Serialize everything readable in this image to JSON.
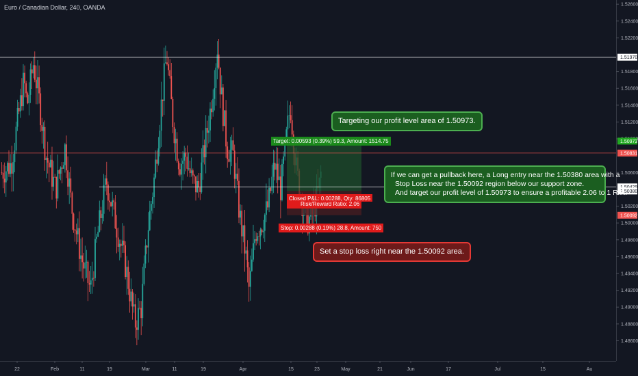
{
  "chart_title": "Euro / Canadian Dollar, 240, OANDA",
  "chart_data": {
    "type": "candlestick",
    "title": "Euro / Canadian Dollar, 240, OANDA",
    "ylim": [
      1.4836,
      1.5265
    ],
    "y_ticks": [
      "1.52600",
      "1.52400",
      "1.52200",
      "1.51800",
      "1.51600",
      "1.51400",
      "1.51200",
      "1.51000",
      "1.50600",
      "1.50200",
      "1.50000",
      "1.49800",
      "1.49600",
      "1.49400",
      "1.49200",
      "1.49000",
      "1.48800",
      "1.48600"
    ],
    "x_ticks": [
      "22",
      "Feb",
      "11",
      "19",
      "Mar",
      "11",
      "19",
      "Apr",
      "15",
      "23",
      "May",
      "21",
      "Jun",
      "17",
      "Jul",
      "15",
      "Au"
    ],
    "price_path": [
      [
        0,
        1.506
      ],
      [
        3,
        1.507
      ],
      [
        5,
        1.512
      ],
      [
        7,
        1.517
      ],
      [
        8,
        1.514
      ],
      [
        10,
        1.519
      ],
      [
        12,
        1.514
      ],
      [
        14,
        1.508
      ],
      [
        17,
        1.504
      ],
      [
        20,
        1.509
      ],
      [
        22,
        1.502
      ],
      [
        25,
        1.496
      ],
      [
        28,
        1.492
      ],
      [
        30,
        1.498
      ],
      [
        33,
        1.505
      ],
      [
        36,
        1.5
      ],
      [
        39,
        1.495
      ],
      [
        42,
        1.488
      ],
      [
        44,
        1.49
      ],
      [
        46,
        1.499
      ],
      [
        48,
        1.505
      ],
      [
        50,
        1.513
      ],
      [
        52,
        1.52
      ],
      [
        54,
        1.512
      ],
      [
        56,
        1.507
      ],
      [
        58,
        1.508
      ],
      [
        60,
        1.505
      ],
      [
        62,
        1.504
      ],
      [
        64,
        1.509
      ],
      [
        66,
        1.514
      ],
      [
        68,
        1.521
      ],
      [
        69,
        1.516
      ],
      [
        71,
        1.509
      ],
      [
        73,
        1.508
      ],
      [
        75,
        1.501
      ],
      [
        77,
        1.496
      ],
      [
        78,
        1.492
      ],
      [
        80,
        1.499
      ],
      [
        82,
        1.5
      ],
      [
        84,
        1.502
      ],
      [
        86,
        1.507
      ],
      [
        88,
        1.504
      ],
      [
        90,
        1.511
      ],
      [
        91,
        1.514
      ],
      [
        93,
        1.506
      ],
      [
        95,
        1.502
      ],
      [
        96,
        1.5
      ],
      [
        98,
        1.501
      ],
      [
        100,
        1.504
      ],
      [
        101,
        1.507
      ]
    ],
    "levels": [
      {
        "label": "1.51970",
        "value": 1.5197,
        "color": "#ffffff"
      },
      {
        "label": "1.50831",
        "value": 1.50831,
        "color": "#ef5350"
      },
      {
        "label": "1.50429",
        "value": 1.50429,
        "color": "#ffffff"
      }
    ],
    "position": {
      "type": "long",
      "entry": 1.5038,
      "target": 1.50973,
      "stop": 1.50092,
      "entry_label": "1.50380",
      "target_label": "1.50973",
      "stop_label": "1.50092"
    },
    "target_tag": "Target: 0.00593 (0.39%) 59.3, Amount: 1514.75",
    "closed_tag_1": "Closed P&L: 0.00288, Qty: 86805",
    "closed_tag_2": "Risk/Reward Ratio: 2.06",
    "stop_tag": "Stop: 0.00288 (0.19%) 28.8, Amount: 750"
  },
  "notes": {
    "target": "Targeting our profit level area of 1.50973.",
    "entry_lines": [
      "If we can get a pullback here, a Long entry near the 1.50380 area with a",
      "Stop Loss near the 1.50092 region below our support zone.",
      "And target our profit level of 1.50973 to ensure a profitable 2.06 to 1 R/R."
    ],
    "stop": "Set a stop loss right near the 1.50092 area."
  },
  "colors": {
    "bg": "#131722",
    "up": "#26a69a",
    "down": "#ef5350",
    "target_zone": "#1e4d2b",
    "stop_zone": "#4a1e22",
    "target_tag": "#1b8a1b",
    "stop_tag": "#e01b1b"
  }
}
